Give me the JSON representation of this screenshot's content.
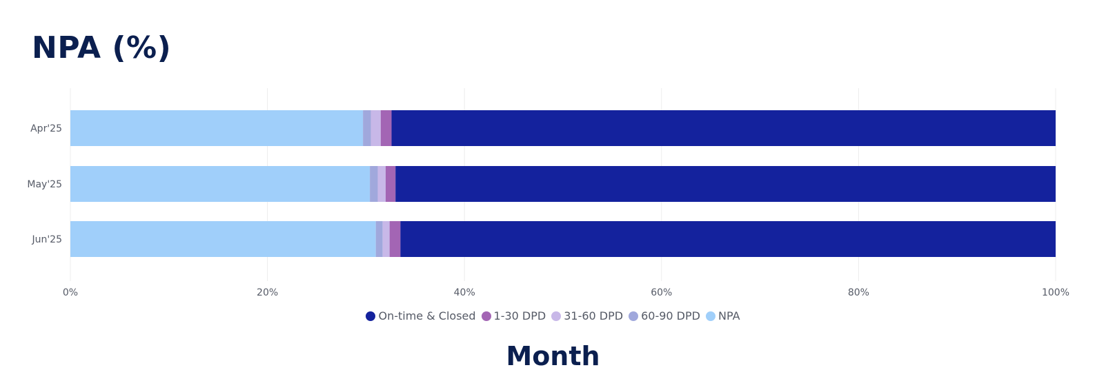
{
  "title": "NPA (%)",
  "chart_data": {
    "type": "bar",
    "orientation": "horizontal",
    "stacked": "100%",
    "categories": [
      "Apr'25",
      "May'25",
      "Jun'25"
    ],
    "series": [
      {
        "name": "NPA",
        "color": "#a0cffa",
        "values": [
          29.7,
          30.4,
          31.0
        ]
      },
      {
        "name": "60-90 DPD",
        "color": "#a0a8dc",
        "values": [
          0.8,
          0.8,
          0.7
        ]
      },
      {
        "name": "31-60 DPD",
        "color": "#c8b8e8",
        "values": [
          1.0,
          0.8,
          0.7
        ]
      },
      {
        "name": "1-30 DPD",
        "color": "#a365b4",
        "values": [
          1.1,
          1.0,
          1.1
        ]
      },
      {
        "name": "On-time & Closed",
        "color": "#14229d",
        "values": [
          67.4,
          67.0,
          66.5
        ]
      }
    ],
    "xlim": [
      0,
      100
    ],
    "x_ticks": [
      "0%",
      "20%",
      "40%",
      "60%",
      "80%",
      "100%"
    ],
    "xlabel": "",
    "ylabel": "Month",
    "grid": true,
    "legend_placement": "bottom",
    "legend_order": [
      "On-time & Closed",
      "1-30 DPD",
      "31-60 DPD",
      "60-90 DPD",
      "NPA"
    ]
  }
}
